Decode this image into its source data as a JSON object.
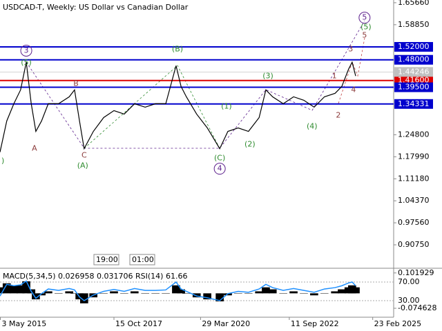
{
  "chart_data": [
    {
      "type": "line",
      "title": "USDCAD-T, Weekly:  US Dollar vs Canadian Dollar",
      "color": "#000000",
      "x": [
        2014.65,
        2014.84,
        2015.04,
        2015.23,
        2015.39,
        2015.53,
        2015.66,
        2015.82,
        2016.01,
        2016.3,
        2016.6,
        2016.75,
        2016.89,
        2017.02,
        2017.28,
        2017.57,
        2017.86,
        2018.15,
        2018.44,
        2018.74,
        2019.03,
        2019.32,
        2019.61,
        2019.75,
        2019.9,
        2020.19,
        2020.49,
        2020.84,
        2021.07,
        2021.36,
        2021.65,
        2021.95,
        2022.14,
        2022.33,
        2022.63,
        2022.92,
        2023.21,
        2023.5,
        2023.79,
        2024.09,
        2024.28,
        2024.47,
        2024.57,
        2024.67
      ],
      "values": [
        1.1943,
        1.2906,
        1.3441,
        1.3869,
        1.4725,
        1.3441,
        1.2585,
        1.2906,
        1.3441,
        1.3441,
        1.3655,
        1.3869,
        1.2906,
        1.205,
        1.2585,
        1.3013,
        1.3227,
        1.312,
        1.3441,
        1.3334,
        1.3441,
        1.3441,
        1.4618,
        1.3976,
        1.3655,
        1.312,
        1.2692,
        1.205,
        1.2585,
        1.2692,
        1.2585,
        1.3013,
        1.3869,
        1.3655,
        1.3441,
        1.3655,
        1.3548,
        1.3334,
        1.3655,
        1.3762,
        1.3976,
        1.4511,
        1.4725,
        1.4297
      ],
      "xlim": [
        2014.65,
        2025.74
      ],
      "ylim": [
        0.835,
        1.665
      ],
      "xticks": [
        {
          "value": 2014.66,
          "label": "3 May 2015"
        },
        {
          "value": 2017.86,
          "label": "15 Oct 2017"
        },
        {
          "value": 2020.3,
          "label": "29 Mar 2020"
        },
        {
          "value": 2022.8,
          "label": "11 Sep 2022"
        },
        {
          "value": 2025.15,
          "label": "23 Feb 2025"
        }
      ],
      "yticks": [
        {
          "value": 1.6566,
          "label": "1.65660"
        },
        {
          "value": 1.5885,
          "label": "1.58850"
        },
        {
          "value": 1.248,
          "label": "1.24800"
        },
        {
          "value": 1.1799,
          "label": "1.17990"
        },
        {
          "value": 1.1118,
          "label": "1.11180"
        },
        {
          "value": 1.0437,
          "label": "1.04370"
        },
        {
          "value": 0.9756,
          "label": "0.97560"
        },
        {
          "value": 0.9075,
          "label": "0.90750"
        }
      ],
      "levels": [
        {
          "value": 1.52,
          "label": "1.52000",
          "color": "#0000cd"
        },
        {
          "value": 1.48,
          "label": "1.48000",
          "color": "#0000cd"
        },
        {
          "value": 1.416,
          "label": "1.41600",
          "color": "#dd0000"
        },
        {
          "value": 1.395,
          "label": "1.39500",
          "color": "#0000cd"
        },
        {
          "value": 1.34331,
          "label": "1.34331",
          "color": "#0000cd"
        }
      ],
      "current_price": {
        "value": 1.44246,
        "label": "1.44246"
      },
      "time_labels": [
        "19:00",
        "01:00"
      ],
      "annotations": [
        {
          "text": "3",
          "x": 2015.39,
          "y": 1.5082,
          "color": "#5b1e8c",
          "circled": true
        },
        {
          "text": "(5)",
          "x": 2015.39,
          "y": 1.4704,
          "color": "#2e8b2e"
        },
        {
          "text": "B",
          "x": 2016.79,
          "y": 1.4061,
          "color": "#8b3a3a"
        },
        {
          "text": "A",
          "x": 2015.62,
          "y": 1.205,
          "color": "#8b3a3a"
        },
        {
          "text": "C",
          "x": 2017.02,
          "y": 1.1836,
          "color": "#8b3a3a"
        },
        {
          "text": "(A)",
          "x": 2016.98,
          "y": 1.1515,
          "color": "#2e8b2e"
        },
        {
          "text": "(B)",
          "x": 2019.65,
          "y": 1.5125,
          "color": "#2e8b2e"
        },
        {
          "text": "(C)",
          "x": 2020.84,
          "y": 1.1751,
          "color": "#2e8b2e"
        },
        {
          "text": "4",
          "x": 2020.84,
          "y": 1.143,
          "color": "#5b1e8c",
          "circled": true
        },
        {
          "text": "(1)",
          "x": 2021.03,
          "y": 1.3355,
          "color": "#2e8b2e"
        },
        {
          "text": "(2)",
          "x": 2021.69,
          "y": 1.2178,
          "color": "#2e8b2e"
        },
        {
          "text": "(3)",
          "x": 2022.2,
          "y": 1.4297,
          "color": "#2e8b2e"
        },
        {
          "text": "(4)",
          "x": 2023.44,
          "y": 1.2734,
          "color": "#2e8b2e"
        },
        {
          "text": "1",
          "x": 2024.07,
          "y": 1.4297,
          "color": "#8b3a3a"
        },
        {
          "text": "2",
          "x": 2024.18,
          "y": 1.3077,
          "color": "#8b3a3a"
        },
        {
          "text": "3",
          "x": 2024.53,
          "y": 1.5125,
          "color": "#8b3a3a"
        },
        {
          "text": "4",
          "x": 2024.61,
          "y": 1.3862,
          "color": "#8b3a3a"
        },
        {
          "text": "5",
          "x": 2024.92,
          "y": 1.5553,
          "color": "#8b3a3a"
        },
        {
          "text": "(5)",
          "x": 2024.96,
          "y": 1.581,
          "color": "#2e8b2e"
        },
        {
          "text": "5",
          "x": 2024.92,
          "y": 1.6103,
          "color": "#5b1e8c",
          "circled": true
        },
        {
          "text": ")",
          "x": 2014.73,
          "y": 1.1665,
          "color": "#2e8b2e"
        }
      ]
    },
    {
      "type": "indicator",
      "title": "MACD(5,34,5) 0.026958 0.031706 RSI(14) 61.66",
      "x": [
        2014.65,
        2014.84,
        2015.04,
        2015.23,
        2015.39,
        2015.53,
        2015.66,
        2015.82,
        2016.01,
        2016.3,
        2016.6,
        2016.75,
        2016.89,
        2017.02,
        2017.28,
        2017.57,
        2017.86,
        2018.15,
        2018.44,
        2018.74,
        2019.03,
        2019.32,
        2019.61,
        2019.75,
        2019.9,
        2020.19,
        2020.49,
        2020.84,
        2021.07,
        2021.36,
        2021.65,
        2021.95,
        2022.14,
        2022.33,
        2022.63,
        2022.92,
        2023.21,
        2023.5,
        2023.79,
        2024.09,
        2024.28,
        2024.47,
        2024.57,
        2024.67
      ],
      "xlim": [
        2014.65,
        2025.74
      ],
      "macd": {
        "color": "#000000",
        "values": [
          0.03,
          0.05,
          0.04,
          0.04,
          0.06,
          0.02,
          -0.03,
          -0.01,
          0.01,
          0.0,
          0.01,
          0.0,
          -0.03,
          -0.05,
          -0.02,
          0.0,
          0.01,
          0.0,
          0.01,
          0.0,
          0.0,
          0.0,
          0.04,
          0.02,
          0.0,
          -0.02,
          -0.03,
          -0.04,
          -0.01,
          0.0,
          0.0,
          0.01,
          0.03,
          0.02,
          0.0,
          0.01,
          0.0,
          -0.01,
          0.0,
          0.01,
          0.02,
          0.03,
          0.04,
          0.03
        ]
      },
      "rsi": {
        "color": "#1e90ff",
        "values": [
          40,
          65,
          62,
          64,
          72,
          50,
          35,
          45,
          55,
          52,
          56,
          53,
          38,
          30,
          42,
          50,
          54,
          50,
          56,
          52,
          52,
          53,
          70,
          55,
          50,
          40,
          36,
          30,
          45,
          50,
          48,
          55,
          65,
          58,
          52,
          56,
          52,
          48,
          55,
          58,
          62,
          68,
          70,
          62
        ]
      },
      "ylim": [
        -0.1193,
        0.1219
      ],
      "y2lim": [
        -5.6,
        98.1
      ],
      "yticks": [
        {
          "value": 0.101929,
          "label": "0.101929"
        },
        {
          "value": -0.074628,
          "label": "-0.074628"
        }
      ],
      "y2ticks": [
        {
          "value": 70,
          "label": "70.00"
        },
        {
          "value": 30,
          "label": "30.00"
        }
      ]
    }
  ]
}
